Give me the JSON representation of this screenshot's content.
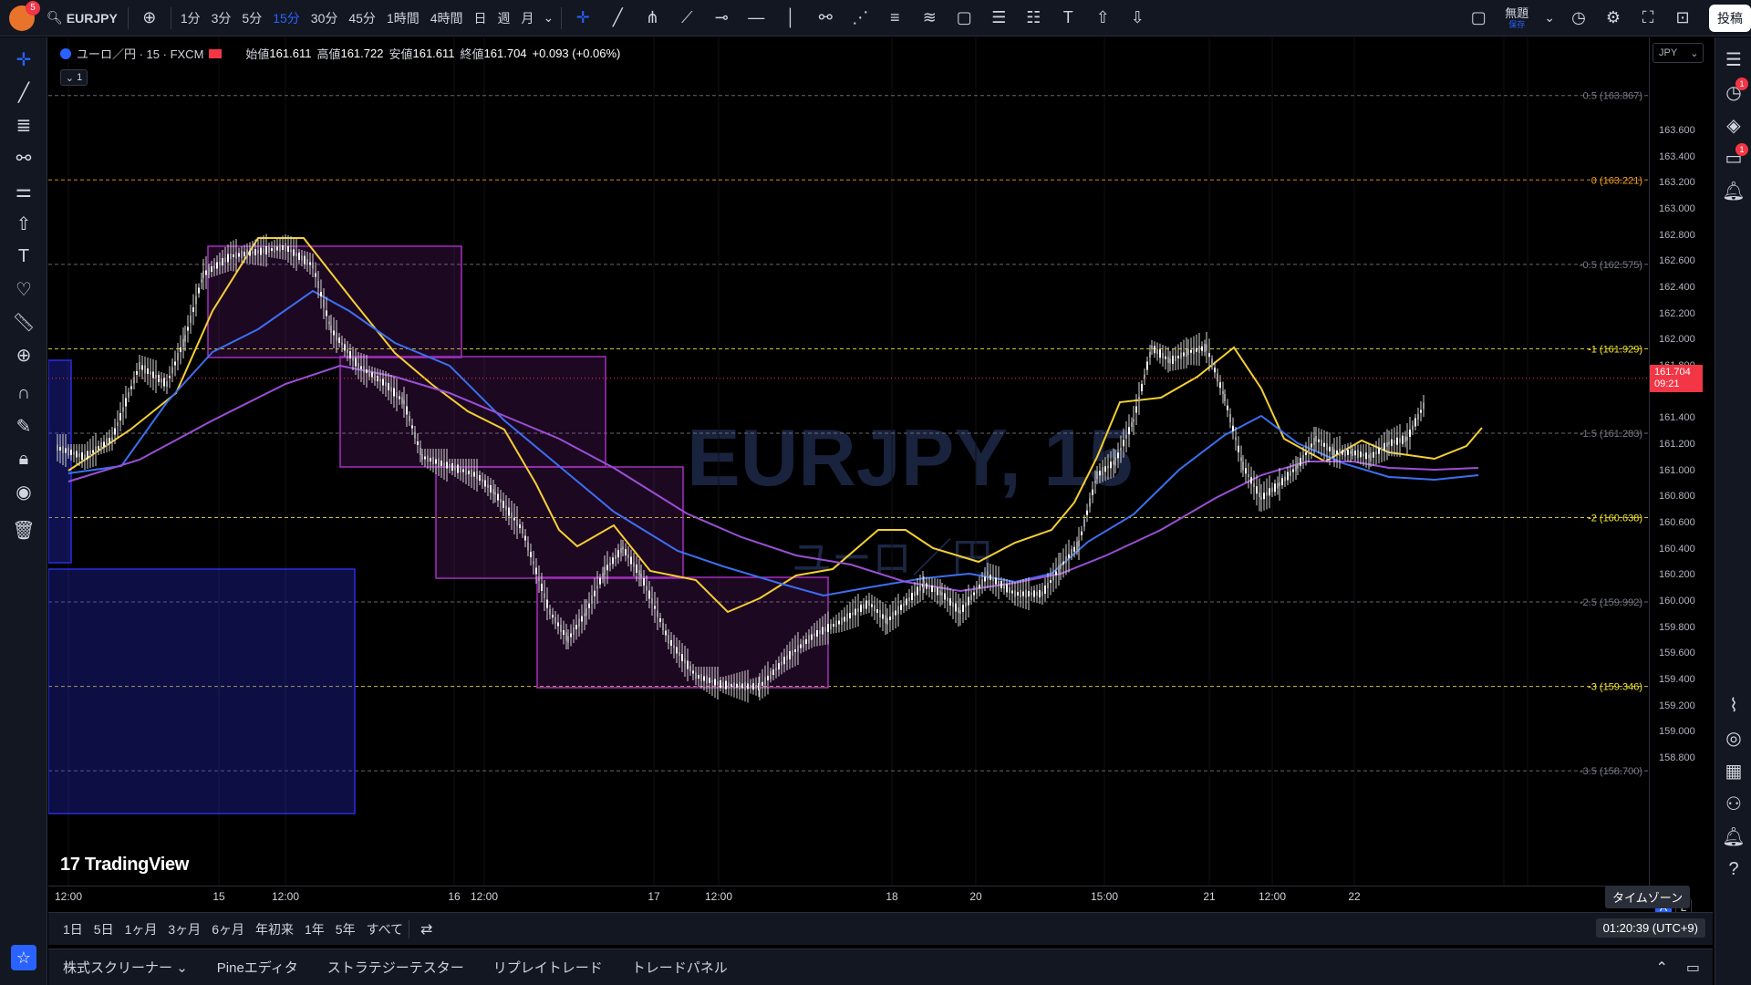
{
  "topbar": {
    "avatar_badge": "5",
    "symbol": "EURJPY",
    "timeframes": [
      "1分",
      "3分",
      "5分",
      "15分",
      "30分",
      "45分",
      "1時間",
      "4時間",
      "日",
      "週",
      "月"
    ],
    "active_timeframe_index": 3,
    "save_label": "無題",
    "save_sub": "保存",
    "publish_label": "投稿"
  },
  "legend": {
    "title": "ユーロ／円 · 15 · FXCM",
    "open_label": "始値",
    "open": "161.611",
    "high_label": "高値",
    "high": "161.722",
    "low_label": "安値",
    "low": "161.611",
    "close_label": "終値",
    "close": "161.704",
    "change": "+0.093 (+0.06%)",
    "collapse": "1"
  },
  "watermark": {
    "symbol": "EURJPY, 15",
    "name": "ユーロ／円"
  },
  "branding": "TradingView",
  "price_scale": {
    "currency": "JPY",
    "labels": [
      "163.600",
      "163.400",
      "163.200",
      "163.000",
      "162.800",
      "162.600",
      "162.400",
      "162.200",
      "162.000",
      "161.800",
      "161.400",
      "161.200",
      "161.000",
      "160.800",
      "160.600",
      "160.400",
      "160.200",
      "160.000",
      "159.800",
      "159.600",
      "159.400",
      "159.200",
      "159.000",
      "158.800"
    ],
    "current_price": "161.704",
    "countdown": "09:21",
    "auto_label": "A",
    "log_label": "L"
  },
  "fib_levels": [
    {
      "label": "0.5 (163.867)",
      "color": "#787b86"
    },
    {
      "label": "0 (163.221)",
      "color": "#f7a21b"
    },
    {
      "label": "-0.5 (162.575)",
      "color": "#787b86"
    },
    {
      "label": "-1 (161.929)",
      "color": "#f5e72e"
    },
    {
      "label": "-1.5 (161.283)",
      "color": "#787b86"
    },
    {
      "label": "-2 (160.638)",
      "color": "#f5e72e"
    },
    {
      "label": "-2.5 (159.992)",
      "color": "#787b86"
    },
    {
      "label": "-3 (159.346)",
      "color": "#f5e72e"
    },
    {
      "label": "-3.5 (158.700)",
      "color": "#787b86"
    }
  ],
  "time_scale": [
    "12:00",
    "15",
    "12:00",
    "16",
    "12:00",
    "17",
    "12:00",
    "18",
    "20",
    "15:00",
    "21",
    "12:00",
    "22"
  ],
  "timezone_tip": "タイムゾーン",
  "range_buttons": [
    "1日",
    "5日",
    "1ヶ月",
    "3ヶ月",
    "6ヶ月",
    "年初来",
    "1年",
    "5年",
    "すべて"
  ],
  "clock": "01:20:39 (UTC+9)",
  "bottom_tabs": [
    "株式スクリーナー",
    "Pineエディタ",
    "ストラテジーテスター",
    "リプレイトレード",
    "トレードパネル"
  ],
  "colors": {
    "ma_fast": "#f5d033",
    "ma_mid": "#3c6ff0",
    "ma_slow": "#9b4fd6",
    "zone_purple": "#a32fbd",
    "zone_blue": "#2a2ee0",
    "price_tag": "#f23645"
  }
}
